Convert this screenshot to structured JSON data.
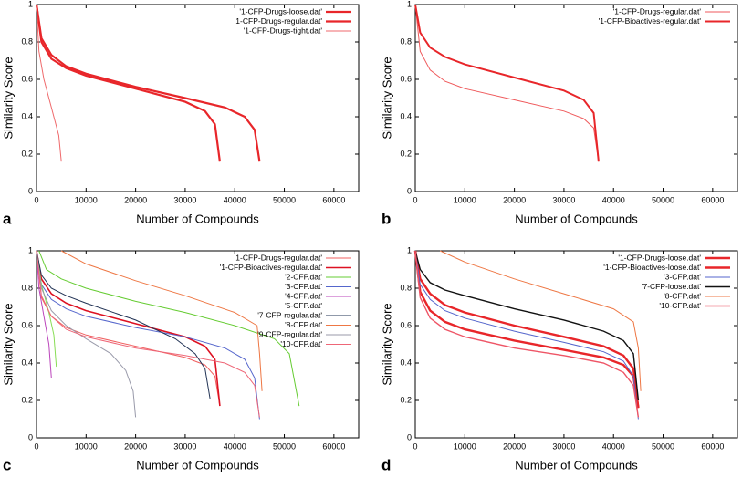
{
  "chart_data": [
    {
      "type": "line",
      "panel_label": "a",
      "x_label": "Number of Compounds",
      "y_label": "Similarity Score",
      "xlim": [
        0,
        65000
      ],
      "ylim": [
        0,
        1
      ],
      "xticks": [
        0,
        10000,
        20000,
        30000,
        40000,
        50000,
        60000
      ],
      "yticks": [
        0,
        0.2,
        0.4,
        0.6,
        0.8,
        1
      ],
      "legend": "top-right",
      "series": [
        {
          "name": "'1-CFP-Drugs-loose.dat'",
          "color": "#e8262a",
          "line_width": 2.2,
          "x": [
            0,
            1000,
            3000,
            6000,
            10000,
            20000,
            30000,
            38000,
            42000,
            44000,
            45000
          ],
          "values": [
            1,
            0.82,
            0.73,
            0.67,
            0.63,
            0.56,
            0.5,
            0.45,
            0.4,
            0.33,
            0.16
          ]
        },
        {
          "name": "'1-CFP-Drugs-regular.dat'",
          "color": "#e8262a",
          "line_width": 2.2,
          "x": [
            0,
            1000,
            3000,
            6000,
            10000,
            20000,
            30000,
            34000,
            36000,
            37000
          ],
          "values": [
            1,
            0.8,
            0.71,
            0.66,
            0.62,
            0.55,
            0.48,
            0.43,
            0.36,
            0.16
          ]
        },
        {
          "name": "'1-CFP-Drugs-tight.dat'",
          "color": "#ef6a6c",
          "line_width": 1,
          "x": [
            0,
            500,
            1500,
            3000,
            4500,
            5000
          ],
          "values": [
            1,
            0.75,
            0.6,
            0.45,
            0.3,
            0.16
          ]
        }
      ]
    },
    {
      "type": "line",
      "panel_label": "b",
      "x_label": "Number of Compounds",
      "y_label": "Similarity Score",
      "xlim": [
        0,
        65000
      ],
      "ylim": [
        0,
        1
      ],
      "xticks": [
        0,
        10000,
        20000,
        30000,
        40000,
        50000,
        60000
      ],
      "yticks": [
        0,
        0.2,
        0.4,
        0.6,
        0.8,
        1
      ],
      "legend": "top-right",
      "series": [
        {
          "name": "'1-CFP-Drugs-regular.dat'",
          "color": "#ef5a5c",
          "line_width": 1,
          "x": [
            0,
            1000,
            3000,
            6000,
            10000,
            20000,
            30000,
            34000,
            36000,
            37000
          ],
          "values": [
            1,
            0.75,
            0.65,
            0.59,
            0.55,
            0.49,
            0.43,
            0.39,
            0.34,
            0.16
          ]
        },
        {
          "name": "'1-CFP-Bioactives-regular.dat'",
          "color": "#e8262a",
          "line_width": 2,
          "x": [
            0,
            1000,
            3000,
            6000,
            10000,
            20000,
            30000,
            34000,
            36000,
            37000
          ],
          "values": [
            1,
            0.85,
            0.77,
            0.72,
            0.68,
            0.61,
            0.54,
            0.49,
            0.42,
            0.16
          ]
        }
      ]
    },
    {
      "type": "line",
      "panel_label": "c",
      "x_label": "Number of Compounds",
      "y_label": "Similarity Score",
      "xlim": [
        0,
        65000
      ],
      "ylim": [
        0,
        1
      ],
      "xticks": [
        0,
        10000,
        20000,
        30000,
        40000,
        50000,
        60000
      ],
      "yticks": [
        0,
        0.2,
        0.4,
        0.6,
        0.8,
        1
      ],
      "legend": "top-right",
      "series": [
        {
          "name": "'1-CFP-Drugs-regular.dat'",
          "color": "#f06060",
          "line_width": 1,
          "x": [
            0,
            1000,
            3000,
            6000,
            10000,
            20000,
            30000,
            34000,
            36000,
            37000
          ],
          "values": [
            1,
            0.75,
            0.65,
            0.59,
            0.55,
            0.49,
            0.43,
            0.39,
            0.33,
            0.17
          ]
        },
        {
          "name": "'1-CFP-Bioactives-regular.dat'",
          "color": "#dd1122",
          "line_width": 1.6,
          "x": [
            0,
            1000,
            3000,
            6000,
            10000,
            20000,
            30000,
            34000,
            36000,
            37000
          ],
          "values": [
            1,
            0.85,
            0.77,
            0.72,
            0.68,
            0.61,
            0.54,
            0.49,
            0.42,
            0.17
          ]
        },
        {
          "name": "'2-CFP.dat'",
          "color": "#66cc33",
          "line_width": 1,
          "x": [
            500,
            2000,
            5000,
            10000,
            20000,
            30000,
            40000,
            48000,
            51000,
            53000
          ],
          "values": [
            1,
            0.9,
            0.85,
            0.8,
            0.73,
            0.67,
            0.6,
            0.53,
            0.45,
            0.17
          ]
        },
        {
          "name": "'3-CFP.dat'",
          "color": "#5566cc",
          "line_width": 1,
          "x": [
            0,
            1000,
            3000,
            6000,
            10000,
            20000,
            30000,
            38000,
            42000,
            44000,
            45000
          ],
          "values": [
            1,
            0.82,
            0.74,
            0.69,
            0.65,
            0.59,
            0.54,
            0.48,
            0.42,
            0.32,
            0.1
          ]
        },
        {
          "name": "'4-CFP.dat'",
          "color": "#bb44bb",
          "line_width": 1,
          "x": [
            0,
            500,
            1500,
            2500,
            3000
          ],
          "values": [
            1,
            0.8,
            0.65,
            0.5,
            0.32
          ]
        },
        {
          "name": "'5-CFP.dat'",
          "color": "#88dd55",
          "line_width": 1,
          "x": [
            0,
            1000,
            2500,
            3500,
            4000
          ],
          "values": [
            1,
            0.82,
            0.67,
            0.55,
            0.38
          ]
        },
        {
          "name": "'7-CFP-regular.dat'",
          "color": "#223355",
          "line_width": 1,
          "x": [
            0,
            1000,
            3000,
            6000,
            10000,
            20000,
            28000,
            32000,
            34000,
            35000
          ],
          "values": [
            1,
            0.87,
            0.8,
            0.76,
            0.72,
            0.63,
            0.53,
            0.45,
            0.37,
            0.21
          ]
        },
        {
          "name": "'8-CFP.dat'",
          "color": "#ee7744",
          "line_width": 1,
          "x": [
            5000,
            10000,
            20000,
            30000,
            40000,
            44500,
            45000,
            45500
          ],
          "values": [
            1,
            0.93,
            0.84,
            0.76,
            0.67,
            0.6,
            0.45,
            0.25
          ]
        },
        {
          "name": "'9-CFP-regular.dat'",
          "color": "#999aaa",
          "line_width": 1,
          "x": [
            0,
            1000,
            3000,
            6000,
            10000,
            15000,
            18000,
            19500,
            20000
          ],
          "values": [
            1,
            0.8,
            0.68,
            0.6,
            0.53,
            0.45,
            0.36,
            0.25,
            0.11
          ]
        },
        {
          "name": "'10-CFP.dat'",
          "color": "#ee6677",
          "line_width": 1,
          "x": [
            0,
            1000,
            3000,
            6000,
            10000,
            20000,
            30000,
            38000,
            42000,
            44000,
            45000
          ],
          "values": [
            1,
            0.76,
            0.65,
            0.58,
            0.54,
            0.48,
            0.44,
            0.4,
            0.35,
            0.28,
            0.11
          ]
        }
      ]
    },
    {
      "type": "line",
      "panel_label": "d",
      "x_label": "Number of Compounds",
      "y_label": "Similarity Score",
      "xlim": [
        0,
        65000
      ],
      "ylim": [
        0,
        1
      ],
      "xticks": [
        0,
        10000,
        20000,
        30000,
        40000,
        50000,
        60000
      ],
      "yticks": [
        0,
        0.2,
        0.4,
        0.6,
        0.8,
        1
      ],
      "legend": "top-right",
      "series": [
        {
          "name": "'1-CFP-Drugs-loose.dat'",
          "color": "#e8262a",
          "line_width": 2.4,
          "x": [
            0,
            1000,
            3000,
            6000,
            10000,
            20000,
            30000,
            38000,
            42000,
            44000,
            45000
          ],
          "values": [
            1,
            0.85,
            0.77,
            0.71,
            0.67,
            0.6,
            0.54,
            0.49,
            0.44,
            0.37,
            0.16
          ]
        },
        {
          "name": "'1-CFP-Bioactives-loose.dat'",
          "color": "#e8262a",
          "line_width": 2.4,
          "x": [
            0,
            1000,
            3000,
            6000,
            10000,
            20000,
            30000,
            38000,
            42000,
            44000,
            45000
          ],
          "values": [
            1,
            0.78,
            0.68,
            0.62,
            0.58,
            0.52,
            0.47,
            0.43,
            0.39,
            0.33,
            0.16
          ]
        },
        {
          "name": "'3-CFP.dat'",
          "color": "#5566cc",
          "line_width": 1,
          "x": [
            0,
            1000,
            3000,
            6000,
            10000,
            20000,
            30000,
            38000,
            42000,
            44000,
            45000
          ],
          "values": [
            1,
            0.82,
            0.74,
            0.68,
            0.64,
            0.57,
            0.51,
            0.46,
            0.41,
            0.33,
            0.1
          ]
        },
        {
          "name": "'7-CFP-loose.dat'",
          "color": "#111111",
          "line_width": 1.4,
          "x": [
            0,
            1000,
            3000,
            6000,
            10000,
            20000,
            30000,
            38000,
            42000,
            44000,
            45000
          ],
          "values": [
            1,
            0.9,
            0.83,
            0.79,
            0.76,
            0.69,
            0.63,
            0.57,
            0.52,
            0.45,
            0.2
          ]
        },
        {
          "name": "'8-CFP.dat'",
          "color": "#ee7744",
          "line_width": 1,
          "x": [
            5000,
            10000,
            20000,
            30000,
            40000,
            44000,
            45000,
            45500
          ],
          "values": [
            1,
            0.94,
            0.85,
            0.77,
            0.69,
            0.62,
            0.48,
            0.25
          ]
        },
        {
          "name": "'10-CFP.dat'",
          "color": "#ee5566",
          "line_width": 1.4,
          "x": [
            0,
            1000,
            3000,
            6000,
            10000,
            20000,
            30000,
            38000,
            42000,
            44000,
            45000
          ],
          "values": [
            1,
            0.75,
            0.64,
            0.58,
            0.54,
            0.48,
            0.44,
            0.4,
            0.35,
            0.28,
            0.11
          ]
        }
      ]
    }
  ]
}
